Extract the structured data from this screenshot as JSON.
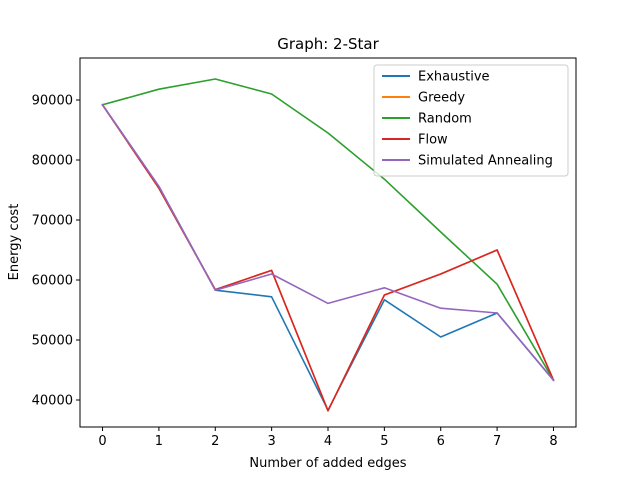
{
  "chart_data": {
    "type": "line",
    "title": "Graph: 2-Star",
    "xlabel": "Number of added edges",
    "ylabel": "Energy cost",
    "x": [
      0,
      1,
      2,
      3,
      4,
      5,
      6,
      7,
      8
    ],
    "xlim": [
      -0.4,
      8.4
    ],
    "ylim": [
      35500,
      97000
    ],
    "xticks": [
      0,
      1,
      2,
      3,
      4,
      5,
      6,
      7,
      8
    ],
    "yticks": [
      40000,
      50000,
      60000,
      70000,
      80000,
      90000
    ],
    "grid": false,
    "legend_position": "top-right",
    "series": [
      {
        "name": "Exhaustive",
        "color": "#1f77b4",
        "values": [
          89200,
          75600,
          58300,
          57200,
          38300,
          56700,
          50500,
          54500,
          43300
        ]
      },
      {
        "name": "Greedy",
        "color": "#ff7f0e",
        "values": [
          89200,
          75300,
          58400,
          61600,
          38200,
          57500,
          61000,
          65000,
          43300
        ]
      },
      {
        "name": "Random",
        "color": "#2ca02c",
        "values": [
          89200,
          91800,
          93500,
          91000,
          84500,
          76800,
          68000,
          59300,
          43300
        ]
      },
      {
        "name": "Flow",
        "color": "#d62728",
        "values": [
          89200,
          75300,
          58400,
          61600,
          38200,
          57500,
          61000,
          65000,
          43300
        ]
      },
      {
        "name": "Simulated Annealing",
        "color": "#9467bd",
        "values": [
          89200,
          75600,
          58300,
          61000,
          56100,
          58700,
          55300,
          54500,
          43300
        ]
      }
    ]
  }
}
